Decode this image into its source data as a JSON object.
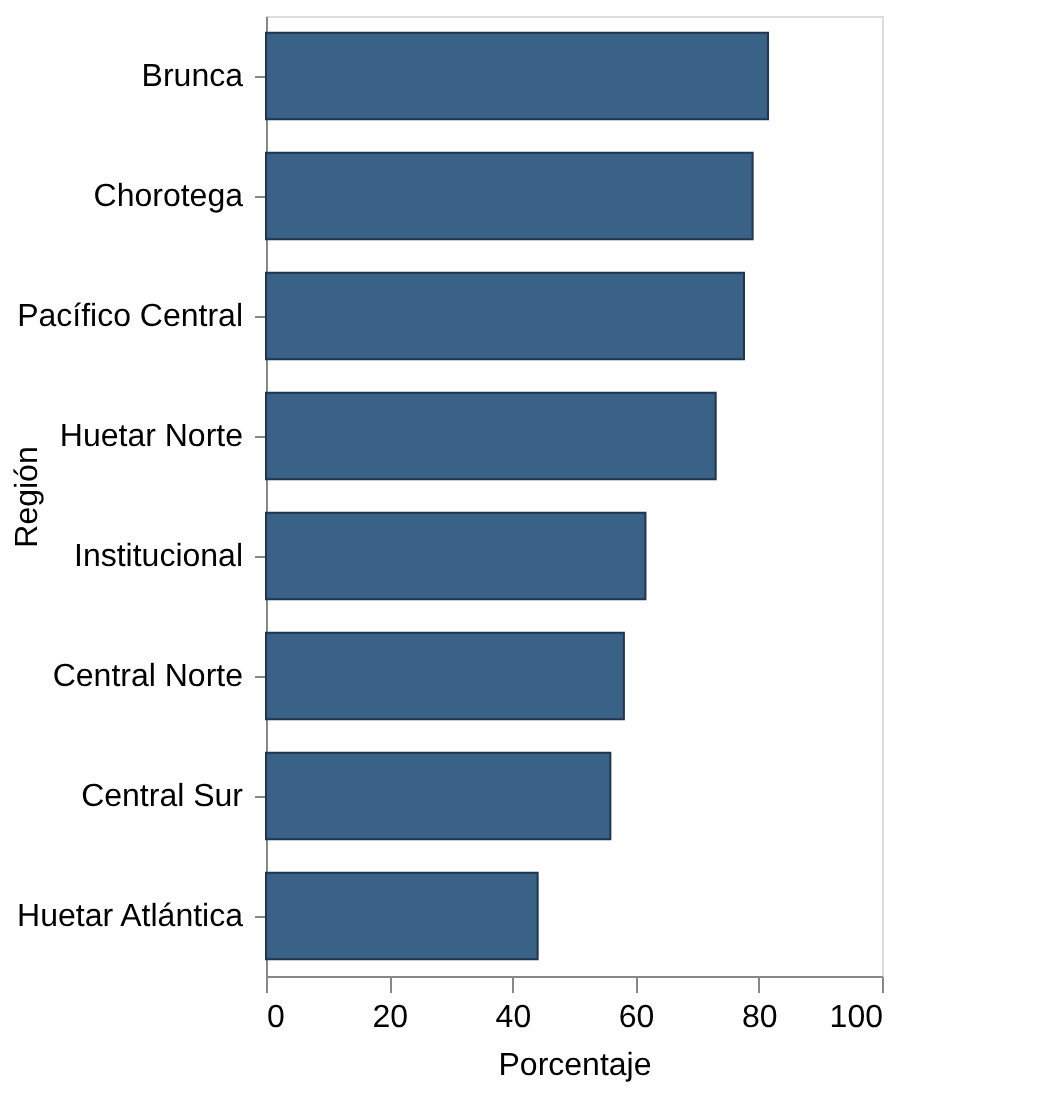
{
  "chart_data": {
    "type": "bar",
    "orientation": "horizontal",
    "xlabel": "Porcentaje",
    "ylabel": "Región",
    "categories": [
      "Brunca",
      "Chorotega",
      "Pacífico Central",
      "Huetar Norte",
      "Institucional",
      "Central Norte",
      "Central Sur",
      "Huetar Atlántica"
    ],
    "values": [
      81.5,
      79.0,
      77.6,
      73.0,
      61.6,
      58.1,
      55.9,
      44.1
    ],
    "color": "#3a6186",
    "xlim": [
      0,
      100
    ],
    "xticks": [
      0,
      20,
      40,
      60,
      80,
      100
    ],
    "grid": false
  }
}
